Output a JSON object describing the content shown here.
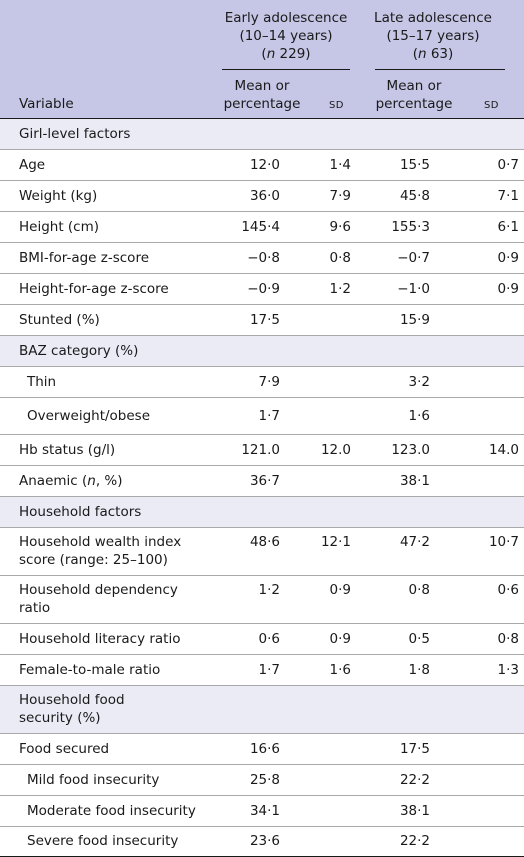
{
  "header": {
    "group1": {
      "line1": "Early adolescence",
      "line2": "(10–14 years)",
      "n_label": "n",
      "n_value": " 229)"
    },
    "group2": {
      "line1": "Late adolescence",
      "line2": "(15–17 years)",
      "n_label": "n",
      "n_value": " 63)"
    },
    "paren_open": "(",
    "mean_line1": "Mean or",
    "mean_line2": "percentage",
    "sd": "SD",
    "variable": "Variable"
  },
  "rows": [
    {
      "label": "Girl-level factors",
      "type": "section"
    },
    {
      "label": "Age",
      "m1": "12·0",
      "s1": "1·4",
      "m2": "15·5",
      "s2": "0·7"
    },
    {
      "label": "Weight (kg)",
      "m1": "36·0",
      "s1": "7·9",
      "m2": "45·8",
      "s2": "7·1"
    },
    {
      "label": "Height (cm)",
      "m1": "145·4",
      "s1": "9·6",
      "m2": "155·3",
      "s2": "6·1"
    },
    {
      "label": "BMI-for-age z-score",
      "m1": "−0·8",
      "s1": "0·8",
      "m2": "−0·7",
      "s2": "0·9"
    },
    {
      "label": "Height-for-age z-score",
      "m1": "−0·9",
      "s1": "1·2",
      "m2": "−1·0",
      "s2": "0·9"
    },
    {
      "label": "Stunted (%)",
      "m1": "17·5",
      "s1": "",
      "m2": "15·9",
      "s2": ""
    },
    {
      "label": "BAZ category (%)",
      "type": "section"
    },
    {
      "label": "Thin",
      "indent": true,
      "m1": "7·9",
      "s1": "",
      "m2": "3·2",
      "s2": ""
    },
    {
      "label": "Overweight/obese",
      "indent": true,
      "m1": "1·7",
      "s1": "",
      "m2": "1·6",
      "s2": ""
    },
    {
      "label": "Hb status (g/l)",
      "m1": "121.0",
      "s1": "12.0",
      "m2": "123.0",
      "s2": "14.0"
    },
    {
      "label_pre": "Anaemic (",
      "label_it": "n",
      "label_post": ", %)",
      "m1": "36·7",
      "s1": "",
      "m2": "38·1",
      "s2": ""
    },
    {
      "label": "Household factors",
      "type": "section"
    },
    {
      "label_l1": "Household wealth index",
      "label_l2": "score (range: 25–100)",
      "m1": "48·6",
      "s1": "12·1",
      "m2": "47·2",
      "s2": "10·7"
    },
    {
      "label_l1": "Household dependency",
      "label_l2": "ratio",
      "m1": "1·2",
      "s1": "0·9",
      "m2": "0·8",
      "s2": "0·6"
    },
    {
      "label": "Household literacy ratio",
      "m1": "0·6",
      "s1": "0·9",
      "m2": "0·5",
      "s2": "0·8"
    },
    {
      "label": "Female-to-male ratio",
      "m1": "1·7",
      "s1": "1·6",
      "m2": "1·8",
      "s2": "1·3"
    },
    {
      "label_l1": "Household food",
      "label_l2": "security (%)",
      "type": "section"
    },
    {
      "label": "Food secured",
      "m1": "16·6",
      "s1": "",
      "m2": "17·5",
      "s2": ""
    },
    {
      "label": "Mild food insecurity",
      "indent": true,
      "m1": "25·8",
      "s1": "",
      "m2": "22·2",
      "s2": ""
    },
    {
      "label": "Moderate food insecurity",
      "indent": true,
      "m1": "34·1",
      "s1": "",
      "m2": "38·1",
      "s2": ""
    },
    {
      "label": "Severe food insecurity",
      "indent": true,
      "m1": "23·6",
      "s1": "",
      "m2": "22·2",
      "s2": ""
    }
  ]
}
